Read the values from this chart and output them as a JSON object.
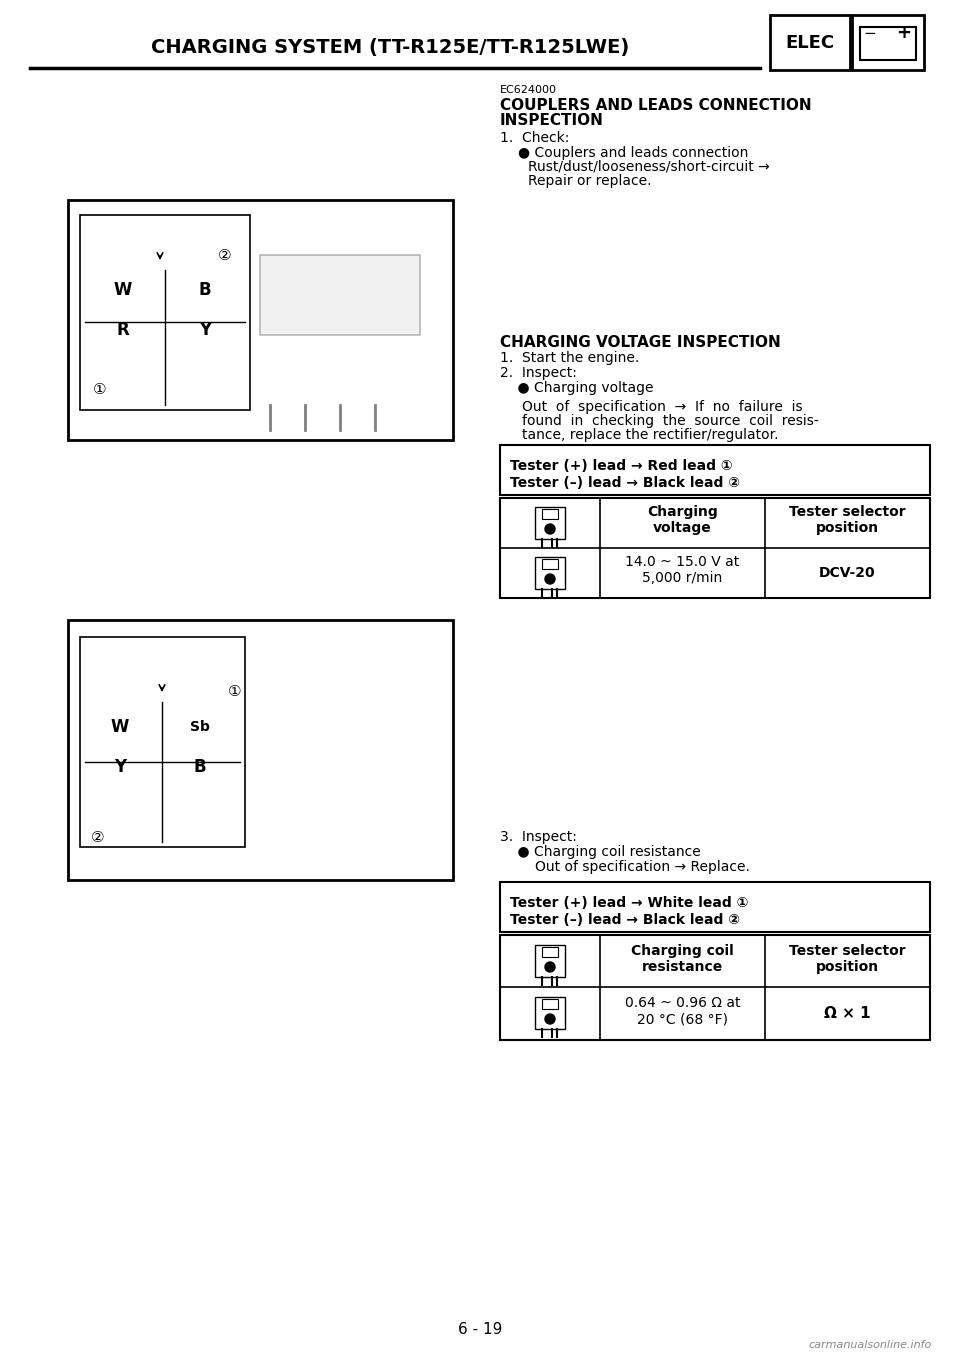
{
  "page_title": "CHARGING SYSTEM (TT-R125E/TT-R125LWE)",
  "elec_label": "ELEC",
  "page_number": "6 - 19",
  "bg_color": "#ffffff",
  "text_color": "#000000",
  "section1_code": "EC624000",
  "section1_title": "COUPLERS AND LEADS CONNECTION\nINSPECTION",
  "section1_items": [
    "1.  Check:",
    "● Couplers and leads connection",
    "     Rust/dust/looseness/short-circuit →",
    "     Repair or replace."
  ],
  "section2_title": "CHARGING VOLTAGE INSPECTION",
  "section2_items": [
    "1.  Start the engine.",
    "2.  Inspect:",
    "    ● Charging voltage",
    "        Out  of  specification  →  If  no  failure  is",
    "        found  in  checking  the  source  coil  resis-",
    "        tance, replace the rectifier/regulator."
  ],
  "tester_box1_line1": "Tester (+) lead → Red lead ①",
  "tester_box1_line2": "Tester (–) lead → Black lead ②",
  "table1_col1_header": "Charging\nvoltage",
  "table1_col2_header": "Tester selector\nposition",
  "table1_col1_val": "14.0 ~ 15.0 V at\n5,000 r/min",
  "table1_col2_val": "DCV-20",
  "section3_items": [
    "3.  Inspect:",
    "    ● Charging coil resistance",
    "        Out of specification → Replace."
  ],
  "tester_box2_line1": "Tester (+) lead → White lead ①",
  "tester_box2_line2": "Tester (–) lead → Black lead ②",
  "table2_col1_header": "Charging coil\nresistance",
  "table2_col2_header": "Tester selector\nposition",
  "table2_col1_val": "0.64 ~ 0.96 Ω at\n20 °C (68 °F)",
  "table2_col2_val": "Ω × 1",
  "watermark": "carmanualsonline.info"
}
